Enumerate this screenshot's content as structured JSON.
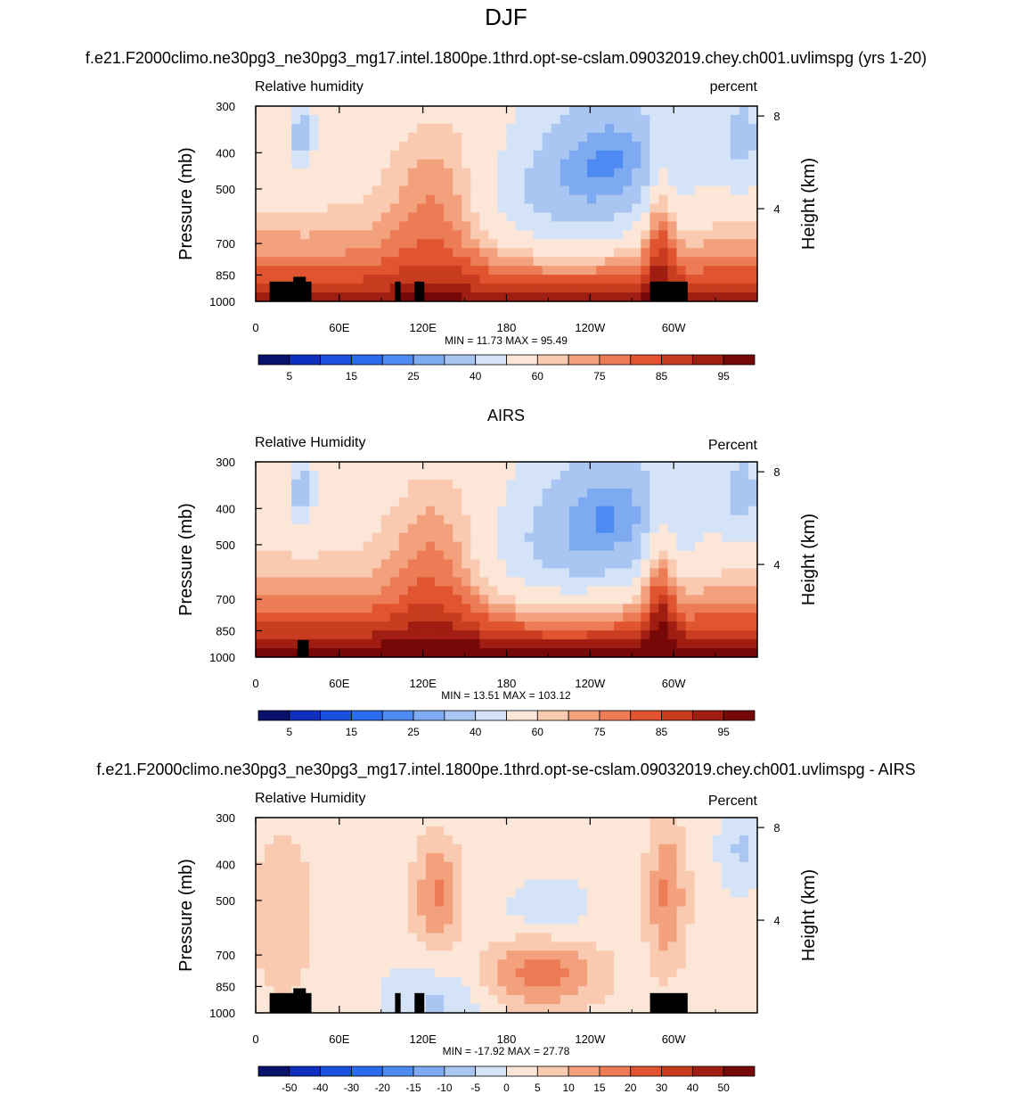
{
  "page": {
    "title": "DJF"
  },
  "colors": {
    "rh_palette": [
      "#08126b",
      "#0e2fbf",
      "#1b4fe0",
      "#2b6bee",
      "#4d8bf3",
      "#7eaaf2",
      "#a9c6f2",
      "#d4e3f7",
      "#fbe6d8",
      "#f9caaf",
      "#f3a17d",
      "#ec7b56",
      "#e05530",
      "#c83d1f",
      "#a01d12",
      "#760808"
    ],
    "diff_palette": [
      "#08126b",
      "#0e2fbf",
      "#1b4fe0",
      "#2b6bee",
      "#4d8bf3",
      "#7eaaf2",
      "#a9c6f2",
      "#d4e3f7",
      "#fbe6d8",
      "#f9caaf",
      "#f3a17d",
      "#ec7b56",
      "#e05530",
      "#c83d1f",
      "#a01d12",
      "#760808"
    ],
    "topography": "#000000"
  },
  "chart_data": [
    {
      "type": "heatmap",
      "title": "f.e21.F2000climo.ne30pg3_ne30pg3_mg17.intel.1800pe.1thrd.opt-se-cslam.09032019.chey.ch001.uvlimspg (yrs 1-20)",
      "left_label": "Relative humidity",
      "right_label": "percent",
      "ylabel": "Pressure (mb)",
      "y2label": "Height (km)",
      "xticks": [
        "0",
        "60E",
        "120E",
        "180",
        "120W",
        "60W"
      ],
      "yticks": [
        "300",
        "400",
        "500",
        "700",
        "850",
        "1000"
      ],
      "y2ticks": [
        "8",
        "4"
      ],
      "stats": "MIN = 11.73  MAX = 95.49",
      "colorbar_labels": [
        "5",
        "15",
        "25",
        "40",
        "60",
        "75",
        "85",
        "95"
      ],
      "levels": [
        5,
        10,
        15,
        20,
        25,
        30,
        40,
        50,
        60,
        65,
        70,
        75,
        80,
        85,
        90,
        95
      ],
      "range": [
        11.73,
        95.49
      ]
    },
    {
      "type": "heatmap",
      "title": "AIRS",
      "left_label": "Relative Humidity",
      "right_label": "Percent",
      "ylabel": "Pressure (mb)",
      "y2label": "Height (km)",
      "xticks": [
        "0",
        "60E",
        "120E",
        "180",
        "120W",
        "60W"
      ],
      "yticks": [
        "300",
        "400",
        "500",
        "700",
        "850",
        "1000"
      ],
      "y2ticks": [
        "8",
        "4"
      ],
      "stats": "MIN = 13.51  MAX = 103.12",
      "colorbar_labels": [
        "5",
        "15",
        "25",
        "40",
        "60",
        "75",
        "85",
        "95"
      ],
      "levels": [
        5,
        10,
        15,
        20,
        25,
        30,
        40,
        50,
        60,
        65,
        70,
        75,
        80,
        85,
        90,
        95
      ],
      "range": [
        13.51,
        103.12
      ]
    },
    {
      "type": "heatmap",
      "title": "f.e21.F2000climo.ne30pg3_ne30pg3_mg17.intel.1800pe.1thrd.opt-se-cslam.09032019.chey.ch001.uvlimspg - AIRS",
      "left_label": "Relative Humidity",
      "right_label": "Percent",
      "ylabel": "Pressure (mb)",
      "y2label": "Height (km)",
      "xticks": [
        "0",
        "60E",
        "120E",
        "180",
        "120W",
        "60W"
      ],
      "yticks": [
        "300",
        "400",
        "500",
        "700",
        "850",
        "1000"
      ],
      "y2ticks": [
        "8",
        "4"
      ],
      "stats": "MIN = -17.92  MAX = 27.78",
      "colorbar_labels": [
        "-50",
        "-40",
        "-30",
        "-20",
        "-15",
        "-10",
        "-5",
        "0",
        "5",
        "10",
        "15",
        "20",
        "30",
        "40",
        "50"
      ],
      "levels": [
        -50,
        -40,
        -30,
        -20,
        -15,
        -10,
        -5,
        0,
        5,
        10,
        15,
        20,
        30,
        40,
        50
      ],
      "range": [
        -17.92,
        27.78
      ]
    }
  ]
}
